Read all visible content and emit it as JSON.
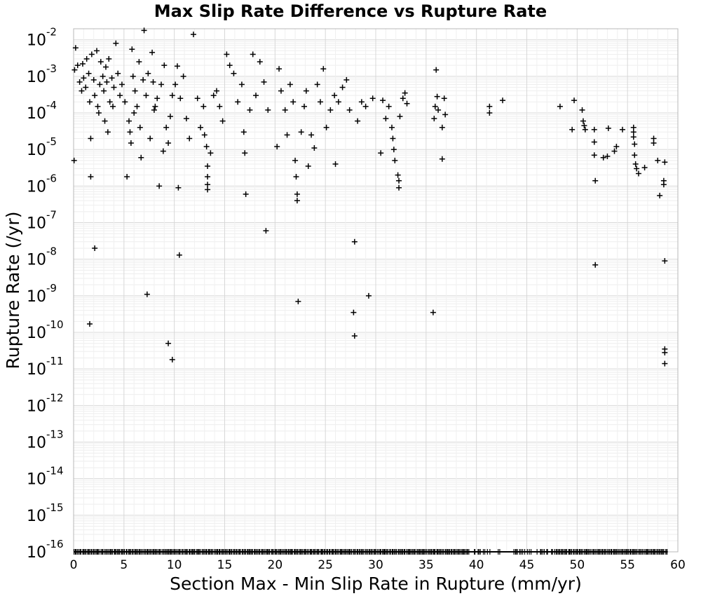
{
  "chart_data": {
    "type": "scatter",
    "title": "Max Slip Rate Difference vs Rupture Rate",
    "xlabel": "Section Max - Min Slip Rate in Rupture (mm/yr)",
    "ylabel": "Rupture Rate (/yr)",
    "xlim": [
      0,
      60
    ],
    "ylim": [
      1e-16,
      0.02
    ],
    "yscale": "log",
    "grid": true,
    "marker": "+",
    "marker_color": "#000000",
    "x_ticks": [
      "0",
      "5",
      "10",
      "15",
      "20",
      "25",
      "30",
      "35",
      "40",
      "45",
      "50",
      "55",
      "60"
    ],
    "y_ticks": [
      {
        "base": "10",
        "exp": "-2"
      },
      {
        "base": "10",
        "exp": "-3"
      },
      {
        "base": "10",
        "exp": "-4"
      },
      {
        "base": "10",
        "exp": "-5"
      },
      {
        "base": "10",
        "exp": "-6"
      },
      {
        "base": "10",
        "exp": "-7"
      },
      {
        "base": "10",
        "exp": "-8"
      },
      {
        "base": "10",
        "exp": "-9"
      },
      {
        "base": "10",
        "exp": "-10"
      },
      {
        "base": "10",
        "exp": "-11"
      },
      {
        "base": "10",
        "exp": "-12"
      },
      {
        "base": "10",
        "exp": "-13"
      },
      {
        "base": "10",
        "exp": "-14"
      },
      {
        "base": "10",
        "exp": "-15"
      },
      {
        "base": "10",
        "exp": "-16"
      }
    ],
    "points": [
      [
        0.1,
        0.0015
      ],
      [
        0.2,
        0.006
      ],
      [
        0.4,
        0.002
      ],
      [
        0.6,
        0.0007
      ],
      [
        0.8,
        0.0004
      ],
      [
        0.9,
        0.0022
      ],
      [
        1.0,
        0.0009
      ],
      [
        1.2,
        0.0005
      ],
      [
        1.3,
        0.003
      ],
      [
        1.5,
        0.0012
      ],
      [
        1.6,
        0.0002
      ],
      [
        1.8,
        0.004
      ],
      [
        2.0,
        0.0008
      ],
      [
        2.1,
        0.0003
      ],
      [
        2.3,
        0.005
      ],
      [
        2.4,
        0.00015
      ],
      [
        2.6,
        0.0006
      ],
      [
        2.7,
        0.0025
      ],
      [
        2.9,
        0.001
      ],
      [
        3.0,
        0.0004
      ],
      [
        3.2,
        0.0018
      ],
      [
        3.3,
        0.0007
      ],
      [
        3.5,
        0.003
      ],
      [
        3.6,
        0.0002
      ],
      [
        3.8,
        0.0009
      ],
      [
        4.0,
        0.0005
      ],
      [
        4.2,
        0.008
      ],
      [
        4.4,
        0.0012
      ],
      [
        4.6,
        0.0003
      ],
      [
        4.8,
        0.0006
      ],
      [
        1.7,
        2e-05
      ],
      [
        2.5,
        0.0001
      ],
      [
        3.1,
        6e-05
      ],
      [
        3.4,
        3e-05
      ],
      [
        3.9,
        0.00015
      ],
      [
        0.05,
        5e-06
      ],
      [
        1.7,
        1.8e-06
      ],
      [
        2.1,
        2e-08
      ],
      [
        1.6,
        1.7e-10
      ],
      [
        5.1,
        0.0002
      ],
      [
        5.3,
        1.8e-06
      ],
      [
        5.5,
        6e-05
      ],
      [
        5.6,
        3e-05
      ],
      [
        5.7,
        1.5e-05
      ],
      [
        5.8,
        0.0055
      ],
      [
        5.9,
        0.001
      ],
      [
        6.1,
        0.0004
      ],
      [
        6.3,
        0.00015
      ],
      [
        6.5,
        0.0025
      ],
      [
        6.7,
        6e-06
      ],
      [
        6.9,
        0.0008
      ],
      [
        7.0,
        0.018
      ],
      [
        7.2,
        0.0003
      ],
      [
        7.4,
        0.0012
      ],
      [
        7.6,
        2e-05
      ],
      [
        7.8,
        0.0045
      ],
      [
        7.9,
        0.0007
      ],
      [
        8.1,
        0.00015
      ],
      [
        8.3,
        0.00025
      ],
      [
        8.5,
        1e-06
      ],
      [
        8.7,
        0.0006
      ],
      [
        8.9,
        9e-06
      ],
      [
        9.0,
        0.002
      ],
      [
        9.2,
        4e-05
      ],
      [
        9.4,
        1.5e-05
      ],
      [
        9.6,
        8e-05
      ],
      [
        9.8,
        0.0003
      ],
      [
        7.3,
        1.1e-09
      ],
      [
        9.4,
        5e-11
      ],
      [
        9.8,
        1.8e-11
      ],
      [
        6.0,
        0.0001
      ],
      [
        6.6,
        4e-05
      ],
      [
        8.0,
        0.00012
      ],
      [
        10.1,
        0.0006
      ],
      [
        10.3,
        0.0019
      ],
      [
        10.4,
        9e-07
      ],
      [
        10.5,
        1.3e-08
      ],
      [
        10.6,
        0.00025
      ],
      [
        10.9,
        0.001
      ],
      [
        11.2,
        7e-05
      ],
      [
        11.5,
        2e-05
      ],
      [
        11.9,
        0.014
      ],
      [
        12.3,
        0.00025
      ],
      [
        12.6,
        4e-05
      ],
      [
        12.9,
        0.00015
      ],
      [
        13.0,
        2.5e-05
      ],
      [
        13.2,
        1.2e-05
      ],
      [
        13.3,
        3.5e-06
      ],
      [
        13.3,
        1.8e-06
      ],
      [
        13.3,
        1.1e-06
      ],
      [
        13.3,
        8e-07
      ],
      [
        13.6,
        8e-06
      ],
      [
        13.9,
        0.0003
      ],
      [
        14.2,
        0.0004
      ],
      [
        14.5,
        0.00015
      ],
      [
        14.8,
        6e-05
      ],
      [
        15.2,
        0.004
      ],
      [
        15.5,
        0.002
      ],
      [
        15.9,
        0.0012
      ],
      [
        16.3,
        0.0002
      ],
      [
        16.7,
        0.0006
      ],
      [
        16.9,
        3e-05
      ],
      [
        17.0,
        8e-06
      ],
      [
        17.1,
        6e-07
      ],
      [
        17.5,
        0.00012
      ],
      [
        17.8,
        0.004
      ],
      [
        18.1,
        0.0003
      ],
      [
        18.5,
        0.0025
      ],
      [
        18.9,
        0.0007
      ],
      [
        19.1,
        6e-08
      ],
      [
        19.3,
        0.00012
      ],
      [
        20.2,
        1.2e-05
      ],
      [
        20.4,
        0.0016
      ],
      [
        20.6,
        0.0004
      ],
      [
        21.0,
        0.00012
      ],
      [
        21.2,
        2.5e-05
      ],
      [
        21.5,
        0.0006
      ],
      [
        21.8,
        0.0002
      ],
      [
        22.0,
        5e-06
      ],
      [
        22.1,
        1.8e-06
      ],
      [
        22.2,
        6e-07
      ],
      [
        22.2,
        4e-07
      ],
      [
        22.3,
        7e-10
      ],
      [
        22.6,
        3e-05
      ],
      [
        22.9,
        0.00015
      ],
      [
        23.1,
        0.0004
      ],
      [
        23.3,
        3.5e-06
      ],
      [
        23.6,
        2.5e-05
      ],
      [
        23.9,
        1.1e-05
      ],
      [
        24.2,
        0.0006
      ],
      [
        24.5,
        0.0002
      ],
      [
        24.8,
        0.0016
      ],
      [
        25.1,
        4e-05
      ],
      [
        25.5,
        0.00012
      ],
      [
        25.9,
        0.0003
      ],
      [
        26.0,
        4e-06
      ],
      [
        26.3,
        0.0002
      ],
      [
        26.7,
        0.0005
      ],
      [
        27.1,
        0.0008
      ],
      [
        27.4,
        0.00012
      ],
      [
        27.8,
        3.5e-10
      ],
      [
        27.9,
        3e-08
      ],
      [
        27.9,
        8e-11
      ],
      [
        28.2,
        6e-05
      ],
      [
        28.6,
        0.0002
      ],
      [
        29.0,
        0.00015
      ],
      [
        29.3,
        1e-09
      ],
      [
        29.7,
        0.00025
      ],
      [
        30.5,
        8e-06
      ],
      [
        30.7,
        0.00022
      ],
      [
        31.0,
        7e-05
      ],
      [
        31.3,
        0.00015
      ],
      [
        31.6,
        4e-05
      ],
      [
        31.7,
        2e-05
      ],
      [
        31.8,
        1e-05
      ],
      [
        31.9,
        5e-06
      ],
      [
        32.2,
        2e-06
      ],
      [
        32.3,
        1.4e-06
      ],
      [
        32.3,
        9e-07
      ],
      [
        32.4,
        8e-05
      ],
      [
        32.7,
        0.00025
      ],
      [
        32.9,
        0.00035
      ],
      [
        33.1,
        0.00018
      ],
      [
        35.7,
        3.5e-10
      ],
      [
        35.8,
        7e-05
      ],
      [
        35.9,
        0.00015
      ],
      [
        36.0,
        0.0015
      ],
      [
        36.1,
        0.00028
      ],
      [
        36.2,
        0.00012
      ],
      [
        36.6,
        4e-05
      ],
      [
        36.6,
        5.5e-06
      ],
      [
        36.8,
        0.00025
      ],
      [
        36.9,
        9e-05
      ],
      [
        41.3,
        0.00015
      ],
      [
        41.3,
        0.0001
      ],
      [
        42.6,
        0.00022
      ],
      [
        48.3,
        0.00015
      ],
      [
        49.5,
        3.5e-05
      ],
      [
        49.7,
        0.00022
      ],
      [
        50.5,
        0.00012
      ],
      [
        50.6,
        6e-05
      ],
      [
        50.7,
        4.5e-05
      ],
      [
        50.8,
        3.5e-05
      ],
      [
        51.7,
        3.5e-05
      ],
      [
        51.7,
        1.6e-05
      ],
      [
        51.7,
        7e-06
      ],
      [
        51.8,
        1.4e-06
      ],
      [
        51.8,
        7e-09
      ],
      [
        52.6,
        6e-06
      ],
      [
        53.0,
        6.5e-06
      ],
      [
        53.1,
        3.8e-05
      ],
      [
        53.7,
        9e-06
      ],
      [
        53.9,
        1.2e-05
      ],
      [
        54.5,
        3.5e-05
      ],
      [
        55.6,
        4e-05
      ],
      [
        55.6,
        3e-05
      ],
      [
        55.6,
        2.2e-05
      ],
      [
        55.7,
        1.4e-05
      ],
      [
        55.7,
        7e-06
      ],
      [
        55.8,
        4e-06
      ],
      [
        55.9,
        3e-06
      ],
      [
        56.1,
        2.2e-06
      ],
      [
        56.7,
        3.2e-06
      ],
      [
        57.6,
        2e-05
      ],
      [
        57.6,
        1.5e-05
      ],
      [
        58.0,
        5e-06
      ],
      [
        58.2,
        5.5e-07
      ],
      [
        58.6,
        1.4e-06
      ],
      [
        58.6,
        1.1e-06
      ],
      [
        58.7,
        4.5e-06
      ],
      [
        58.7,
        9e-09
      ],
      [
        58.7,
        3.5e-11
      ],
      [
        58.7,
        2.8e-11
      ],
      [
        58.7,
        1.4e-11
      ]
    ],
    "floor_value": 1e-16,
    "floor_band_x_range": [
      0,
      59
    ]
  }
}
